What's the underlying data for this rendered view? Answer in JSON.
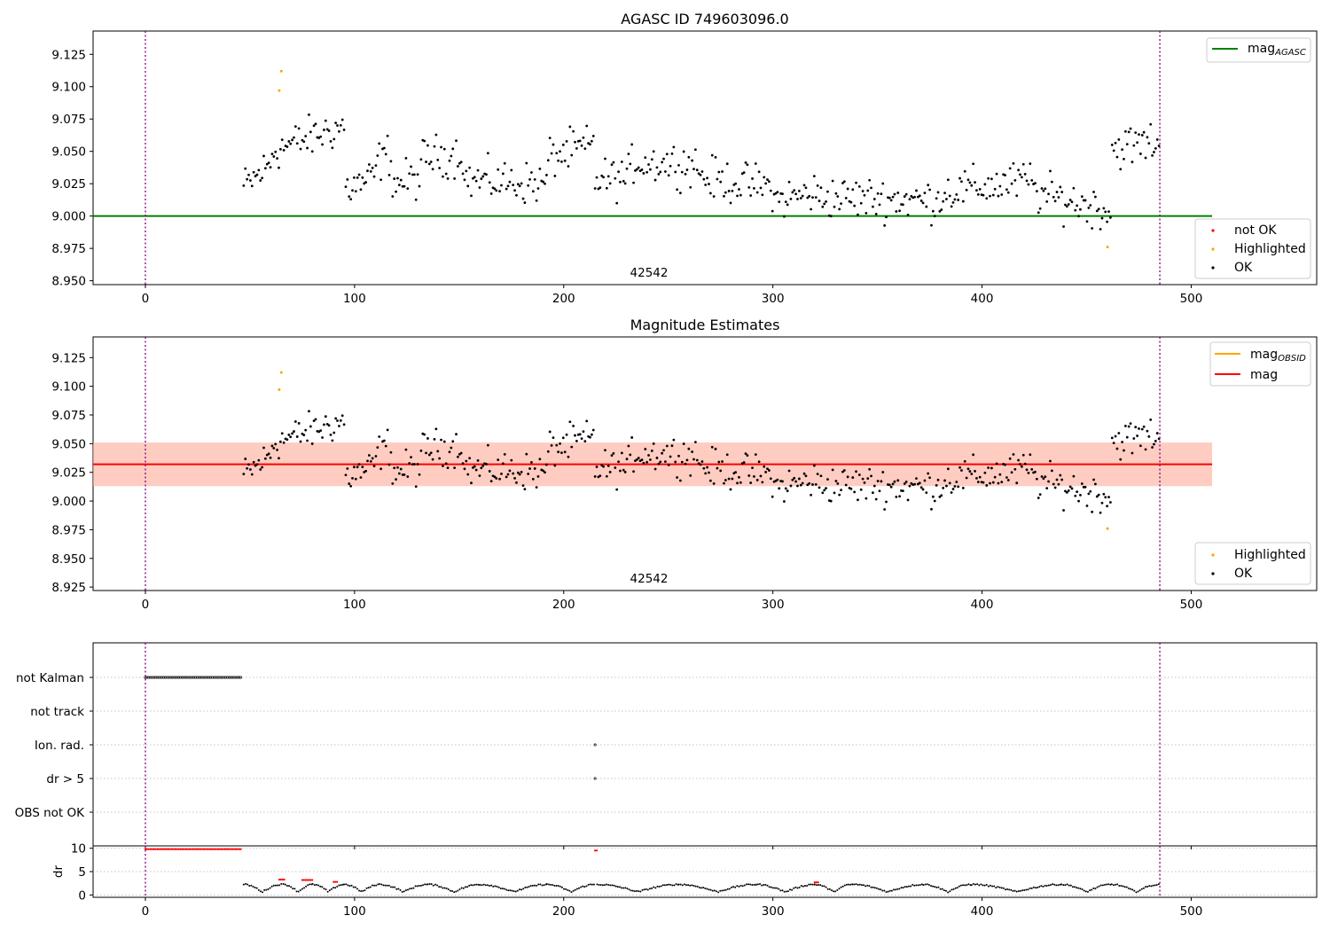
{
  "chart_data": [
    {
      "type": "scatter",
      "title": "AGASC ID 749603096.0",
      "obsid_label": "42542",
      "xlim": [
        -25,
        560
      ],
      "ylim": [
        8.947,
        9.143
      ],
      "xticks": [
        0,
        100,
        200,
        300,
        400,
        500
      ],
      "yticks": [
        8.95,
        8.975,
        9.0,
        9.025,
        9.05,
        9.075,
        9.1,
        9.125
      ],
      "vlines": [
        0,
        485
      ],
      "lines": [
        {
          "name": "mag_AGASC",
          "label_main": "mag",
          "label_sub": "AGASC",
          "y": 9.0,
          "x": [
            -25,
            510
          ],
          "color": "#008000"
        }
      ],
      "scatter_legend": [
        {
          "label": "not OK",
          "color": "#ff0000"
        },
        {
          "label": "Highlighted",
          "color": "#ffa500"
        },
        {
          "label": "OK",
          "color": "#000000"
        }
      ],
      "highlighted": [
        [
          65,
          9.112
        ],
        [
          64,
          9.097
        ],
        [
          460,
          8.976
        ]
      ],
      "not_ok": []
    },
    {
      "type": "scatter",
      "title": "Magnitude Estimates",
      "obsid_label": "42542",
      "xlim": [
        -25,
        560
      ],
      "ylim": [
        8.922,
        9.143
      ],
      "xticks": [
        0,
        100,
        200,
        300,
        400,
        500
      ],
      "yticks": [
        8.925,
        8.95,
        8.975,
        9.0,
        9.025,
        9.05,
        9.075,
        9.1,
        9.125
      ],
      "vlines": [
        0,
        485
      ],
      "lines": [
        {
          "name": "mag_OBSID",
          "label_main": "mag",
          "label_sub": "OBSID",
          "y": 9.032,
          "x": [
            -25,
            510
          ],
          "color": "#ffa500"
        },
        {
          "name": "mag",
          "label_main": "mag",
          "label_sub": "",
          "y": 9.032,
          "x": [
            -25,
            510
          ],
          "color": "#ff0000"
        }
      ],
      "bands": [
        {
          "y": [
            9.013,
            9.051
          ],
          "x": [
            -25,
            510
          ],
          "color": "#ffc0cb",
          "opacity": 0.45
        },
        {
          "y": [
            9.013,
            9.051
          ],
          "x": [
            -25,
            510
          ],
          "color": "#ffa07a",
          "opacity": 0.35
        }
      ],
      "scatter_legend": [
        {
          "label": "Highlighted",
          "color": "#ffa500"
        },
        {
          "label": "OK",
          "color": "#000000"
        }
      ],
      "highlighted": [
        [
          65,
          9.112
        ],
        [
          64,
          9.097
        ],
        [
          460,
          8.976
        ]
      ]
    },
    {
      "type": "scatter",
      "title": "",
      "xlim": [
        -25,
        560
      ],
      "categories": [
        "not Kalman",
        "not track",
        "Ion. rad.",
        "dr > 5",
        "OBS not OK"
      ],
      "flag_points": [
        {
          "category": "not Kalman",
          "x_range": [
            0,
            46
          ],
          "color": "#000000"
        },
        {
          "category": "Ion. rad.",
          "x": [
            215
          ],
          "color": "#000000"
        },
        {
          "category": "dr > 5",
          "x": [
            215
          ],
          "color": "#000000"
        }
      ]
    },
    {
      "type": "scatter",
      "title": "",
      "ylabel": "dr",
      "xlim": [
        -25,
        560
      ],
      "ylim": [
        -0.5,
        10.5
      ],
      "xticks": [
        0,
        100,
        200,
        300,
        400,
        500
      ],
      "yticks": [
        0,
        5,
        10
      ],
      "vlines": [
        0,
        485
      ],
      "red_segments": [
        [
          0,
          46,
          9.8
        ],
        [
          64,
          67,
          3.3
        ],
        [
          75,
          80,
          3.2
        ],
        [
          90,
          92,
          2.8
        ],
        [
          215,
          216,
          9.5
        ],
        [
          320,
          322,
          2.7
        ]
      ]
    }
  ]
}
